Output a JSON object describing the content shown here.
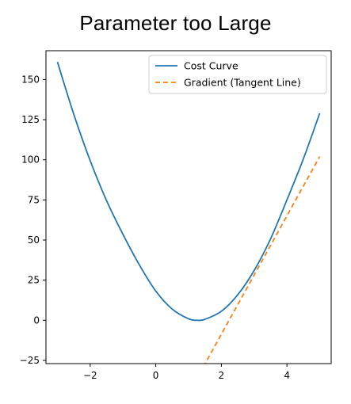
{
  "chart_data": {
    "type": "line",
    "title": "Parameter too Large",
    "xlabel": "",
    "ylabel": "",
    "xlim": [
      -3.35,
      5.35
    ],
    "ylim": [
      -27,
      168
    ],
    "x_ticks": [
      -2,
      0,
      2,
      4
    ],
    "y_ticks": [
      -25,
      0,
      25,
      50,
      75,
      100,
      125,
      150
    ],
    "grid": false,
    "legend_position": "top-right",
    "colors": {
      "cost_curve": "#1f77b4",
      "tangent_line": "#ff7f0e"
    },
    "series": [
      {
        "name": "Cost Curve",
        "style": "solid",
        "x": [
          -3.0,
          -2.5,
          -2.0,
          -1.5,
          -1.0,
          -0.5,
          0.0,
          0.5,
          1.0,
          1.25,
          1.5,
          2.0,
          2.5,
          3.0,
          3.5,
          4.0,
          4.5,
          5.0
        ],
        "y": [
          161.0,
          128.3,
          99.4,
          74.5,
          53.5,
          34.5,
          18.2,
          7.0,
          0.9,
          0.0,
          0.6,
          5.6,
          15.9,
          31.0,
          50.7,
          75.0,
          100.5,
          129.0
        ]
      },
      {
        "name": "Gradient (Tangent Line)",
        "style": "dashed",
        "x": [
          1.45,
          5.0
        ],
        "y": [
          -29.0,
          102.0
        ]
      }
    ]
  }
}
